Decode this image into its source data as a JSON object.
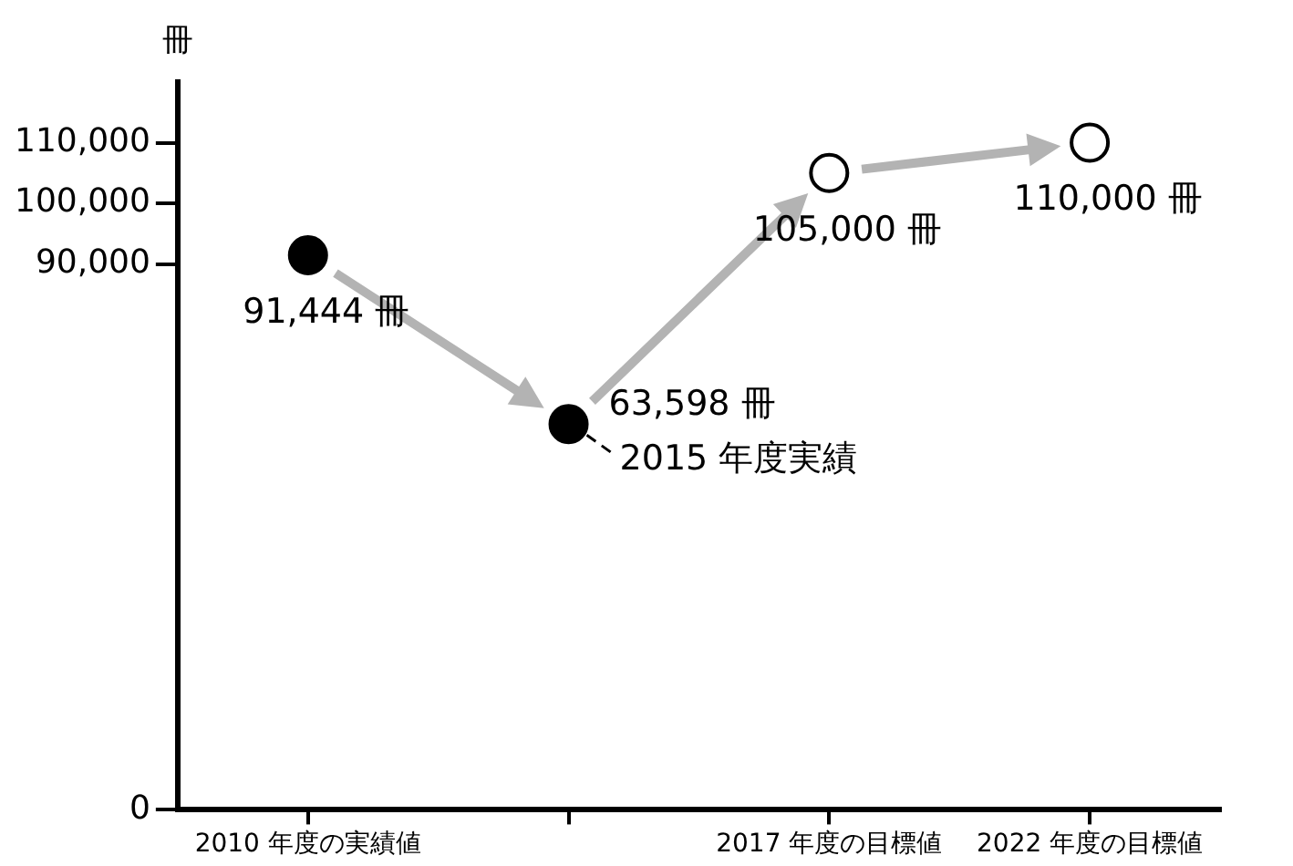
{
  "chart_data": {
    "type": "scatter",
    "ylabel": "冊",
    "categories": [
      "2010 年度の実績値",
      null,
      "2017 年度の目標値",
      "2022 年度の目標値"
    ],
    "series": [
      {
        "color": "#000000",
        "values": [
          91444,
          63598,
          null,
          null
        ],
        "value_labels": [
          "91,444 冊",
          "63,598 冊",
          null,
          null
        ]
      },
      {
        "color": "#ffffff",
        "values": [
          null,
          null,
          105000,
          110000
        ],
        "value_labels": [
          null,
          null,
          "105,000 冊",
          "110,000 冊"
        ]
      }
    ],
    "ylim": [
      0,
      120000
    ],
    "yticks": [
      0,
      {
        "value": 90000,
        "label": "90,000"
      },
      {
        "value": 100000,
        "label": "100,000"
      },
      {
        "value": 110000,
        "label": "110,000"
      }
    ],
    "annotations": [
      "2015 年度実績"
    ],
    "marker": "circle",
    "grid": false,
    "legend": false
  }
}
